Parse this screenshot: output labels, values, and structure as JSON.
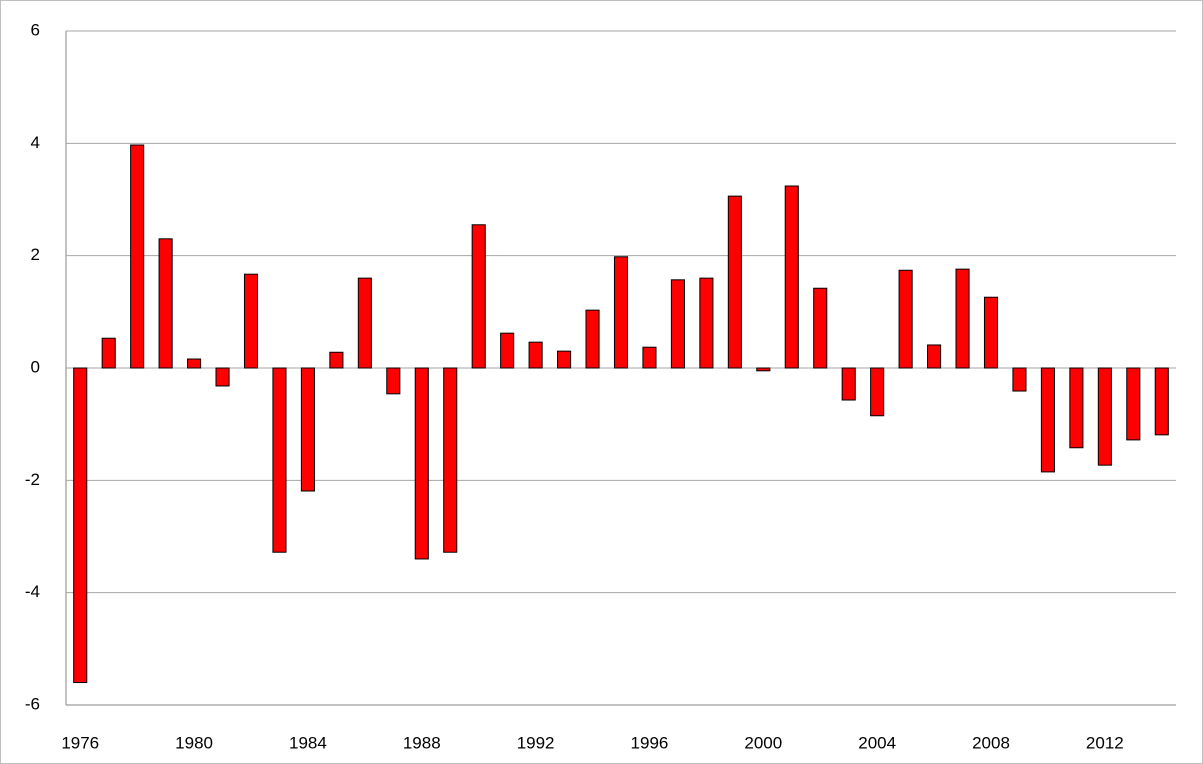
{
  "chart_data": {
    "type": "bar",
    "categories": [
      "1976",
      null,
      null,
      null,
      "1980",
      null,
      null,
      null,
      "1984",
      null,
      null,
      null,
      "1988",
      null,
      null,
      null,
      "1992",
      null,
      null,
      null,
      "1996",
      null,
      null,
      null,
      "2000",
      null,
      null,
      null,
      "2004",
      null,
      null,
      null,
      "2008",
      null,
      null,
      null,
      "2012",
      null,
      null
    ],
    "values": [
      -5.6,
      0.53,
      3.97,
      2.3,
      0.16,
      -0.32,
      1.67,
      -3.28,
      -2.19,
      0.28,
      1.6,
      -0.46,
      -3.4,
      -3.28,
      2.55,
      0.62,
      0.46,
      0.3,
      1.03,
      1.98,
      0.37,
      1.57,
      1.6,
      3.06,
      -0.05,
      3.24,
      1.42,
      -0.57,
      -0.85,
      1.74,
      0.41,
      1.76,
      1.26,
      -0.41,
      -1.85,
      -1.42,
      -1.73,
      -1.28,
      -1.19
    ],
    "color": "#ff0000",
    "ylim": [
      -6,
      6
    ],
    "yticks": [
      -6,
      -4,
      -2,
      0,
      2,
      4,
      6
    ],
    "grid": true
  }
}
